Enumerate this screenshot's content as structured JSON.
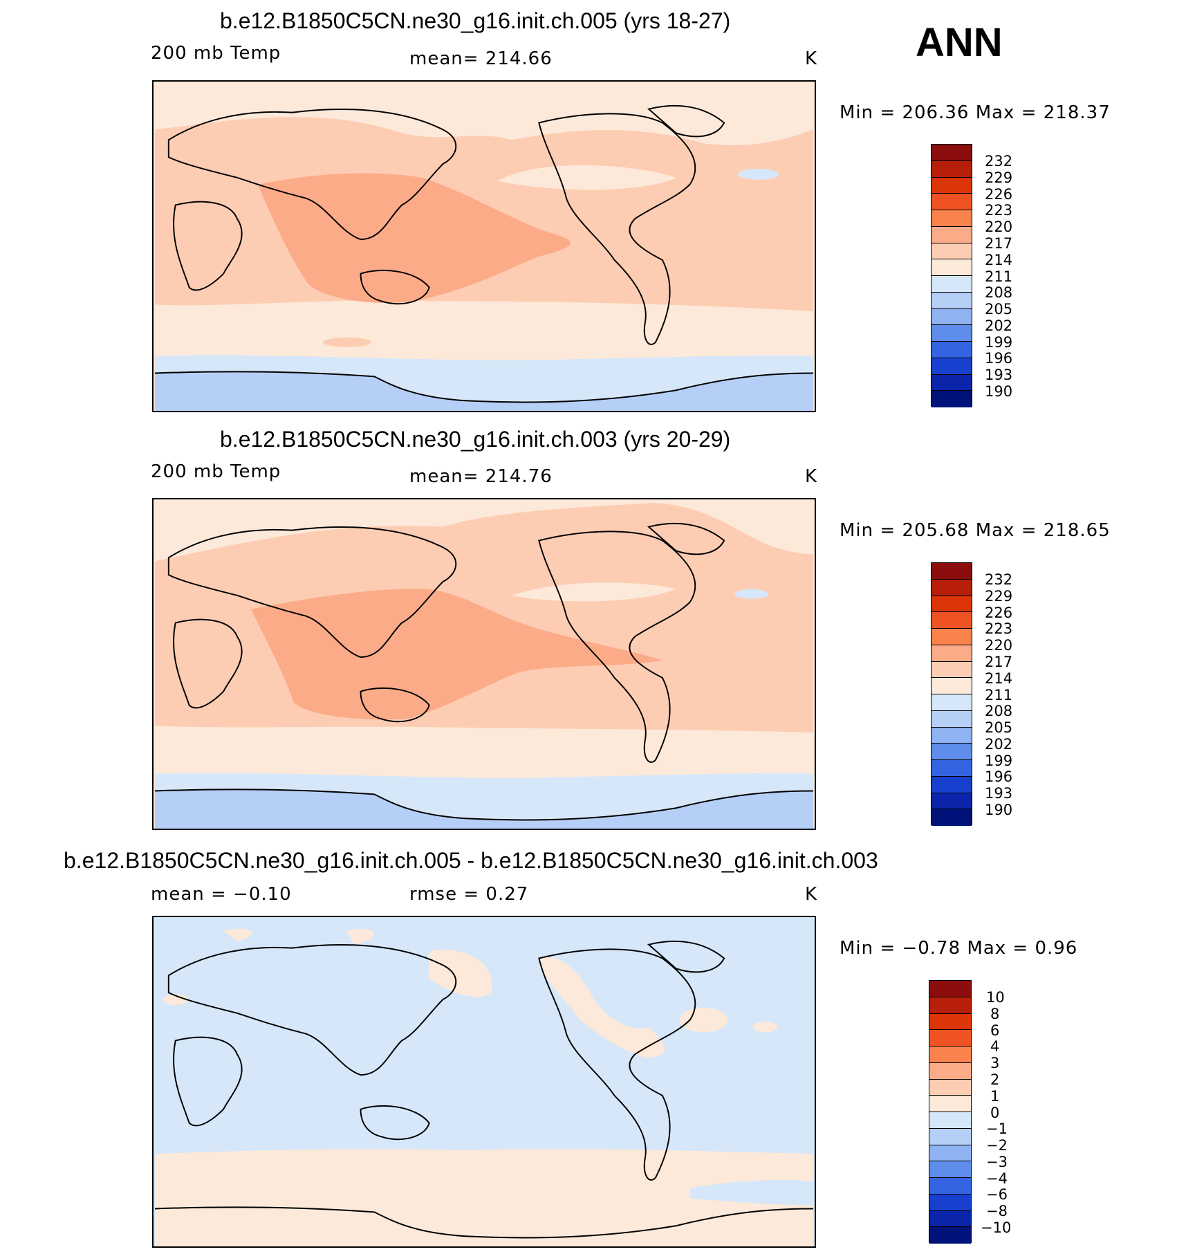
{
  "season_label": "ANN",
  "units": "K",
  "panels": [
    {
      "title": "b.e12.B1850C5CN.ne30_g16.init.ch.005 (yrs 18-27)",
      "variable_label": "200 mb Temp",
      "stat_text": "mean=  214.66",
      "units": "K",
      "minmax_text": "Min  =  206.36  Max  =  218.37",
      "colorbar_labels": [
        "232",
        "229",
        "226",
        "223",
        "220",
        "217",
        "214",
        "211",
        "208",
        "205",
        "202",
        "199",
        "196",
        "193",
        "190"
      ],
      "colorbar_colors": [
        "#8c0d0d",
        "#b81f0a",
        "#dc3508",
        "#ef5324",
        "#f9824d",
        "#fcab89",
        "#fdcdb3",
        "#fde9d9",
        "#d6e7f9",
        "#b5cff7",
        "#8fb3f2",
        "#5f8deb",
        "#3464e2",
        "#1740cf",
        "#0a25aa",
        "#00137a"
      ]
    },
    {
      "title": "b.e12.B1850C5CN.ne30_g16.init.ch.003 (yrs 20-29)",
      "variable_label": "200 mb Temp",
      "stat_text": "mean=  214.76",
      "units": "K",
      "minmax_text": "Min  =  205.68  Max  =  218.65",
      "colorbar_labels": [
        "232",
        "229",
        "226",
        "223",
        "220",
        "217",
        "214",
        "211",
        "208",
        "205",
        "202",
        "199",
        "196",
        "193",
        "190"
      ],
      "colorbar_colors": [
        "#8c0d0d",
        "#b81f0a",
        "#dc3508",
        "#ef5324",
        "#f9824d",
        "#fcab89",
        "#fdcdb3",
        "#fde9d9",
        "#d6e7f9",
        "#b5cff7",
        "#8fb3f2",
        "#5f8deb",
        "#3464e2",
        "#1740cf",
        "#0a25aa",
        "#00137a"
      ]
    },
    {
      "title": "b.e12.B1850C5CN.ne30_g16.init.ch.005 - b.e12.B1850C5CN.ne30_g16.init.ch.003",
      "variable_label": "mean =    −0.10",
      "stat_text": "rmse =     0.27",
      "units": "K",
      "minmax_text": "Min  =    −0.78  Max  =     0.96",
      "colorbar_labels": [
        "10",
        "8",
        "6",
        "4",
        "3",
        "2",
        "1",
        "0",
        "−1",
        "−2",
        "−3",
        "−4",
        "−6",
        "−8",
        "−10"
      ],
      "colorbar_colors": [
        "#8c0d0d",
        "#b81f0a",
        "#dc3508",
        "#ef5324",
        "#f9824d",
        "#fcab89",
        "#fdcdb3",
        "#fde9d9",
        "#d6e7f9",
        "#b5cff7",
        "#8fb3f2",
        "#5f8deb",
        "#3464e2",
        "#1740cf",
        "#0a25aa",
        "#00137a"
      ]
    }
  ],
  "map_colors": {
    "c217": "#fcab89",
    "c214": "#fdcdb3",
    "c211": "#fde9d9",
    "c208": "#d6e7f9",
    "c205": "#b5cff7",
    "coast": "#000000"
  }
}
